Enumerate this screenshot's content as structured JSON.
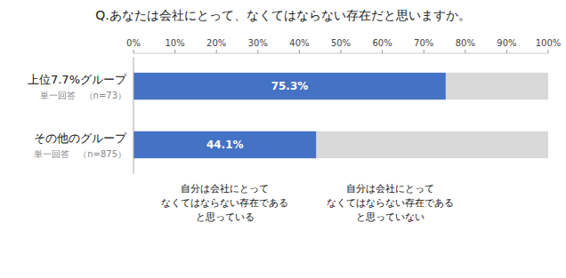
{
  "chart_data": {
    "type": "bar",
    "orientation": "horizontal",
    "stacked": true,
    "title": "Q.あなたは会社にとって、なくてはならない存在だと思いますか。",
    "categories": [
      "上位7.7%グループ",
      "その他のグループ"
    ],
    "annotations": [
      "単一回答　（n=73）",
      "単一回答　（n=875）"
    ],
    "series": [
      {
        "name": "自分は会社にとって\nなくてはならない存在である\nと思っている",
        "color": "#4472C4",
        "values": [
          75.3,
          44.1
        ],
        "data_labels": true,
        "value_labels": [
          "75.3%",
          "44.1%"
        ]
      },
      {
        "name": "自分は会社にとって\nなくてはならない存在である\nと思っていない",
        "color": "#D9D9D9",
        "values": [
          24.7,
          55.9
        ]
      }
    ],
    "xlim": [
      0,
      100
    ],
    "xticks": [
      {
        "value": 0,
        "label": "0%"
      },
      {
        "value": 10,
        "label": "10%"
      },
      {
        "value": 20,
        "label": "20%"
      },
      {
        "value": 30,
        "label": "30%"
      },
      {
        "value": 40,
        "label": "40%"
      },
      {
        "value": 50,
        "label": "50%"
      },
      {
        "value": 60,
        "label": "60%"
      },
      {
        "value": 70,
        "label": "70%"
      },
      {
        "value": 80,
        "label": "80%"
      },
      {
        "value": 90,
        "label": "90%"
      },
      {
        "value": 100,
        "label": "100%"
      }
    ],
    "grid": false
  }
}
